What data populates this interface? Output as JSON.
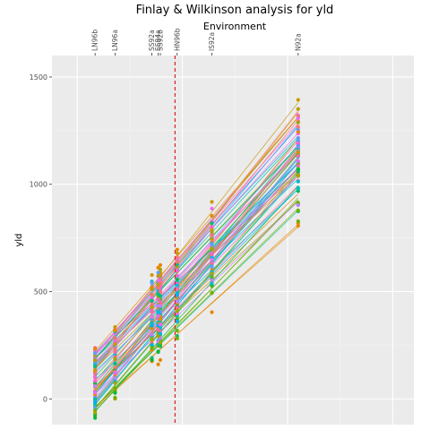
{
  "chart_data": {
    "type": "scatter",
    "title": "Finlay & Wilkinson analysis for yld",
    "subtitle": "Environment",
    "ylabel": "yld",
    "xlabel": "",
    "ylim": [
      -120,
      1600
    ],
    "xlim": [
      -120,
      1600
    ],
    "y_ticks": [
      0,
      500,
      1000,
      1500
    ],
    "x_ticks": [
      0,
      500,
      1000,
      1500
    ],
    "grid": true,
    "legend": "none",
    "reference_line": {
      "x": 465,
      "style": "dashed",
      "color": "#d62728"
    },
    "environments": [
      {
        "label": "LN96b",
        "mean": 85
      },
      {
        "label": "LN96a",
        "mean": 180
      },
      {
        "label": "SS92a",
        "mean": 355
      },
      {
        "label": "SS94a",
        "mean": 385
      },
      {
        "label": "SS92b",
        "mean": 395
      },
      {
        "label": "HN96b",
        "mean": 475
      },
      {
        "label": "IS92a",
        "mean": 640
      },
      {
        "label": "N92a",
        "mean": 1050
      }
    ],
    "genotype_lines": {
      "count": 64,
      "slope_range": [
        0.85,
        1.25
      ],
      "intercept_range": [
        -160,
        140
      ],
      "x_range": [
        85,
        1050
      ],
      "palette": [
        "#F8766D",
        "#E58700",
        "#C99800",
        "#A3A500",
        "#6BB100",
        "#00BA38",
        "#00BF7D",
        "#00C0AF",
        "#00BCD8",
        "#00B0F6",
        "#619CFF",
        "#B983FF",
        "#E76BF3",
        "#FD61D1",
        "#FF67A4"
      ]
    }
  }
}
